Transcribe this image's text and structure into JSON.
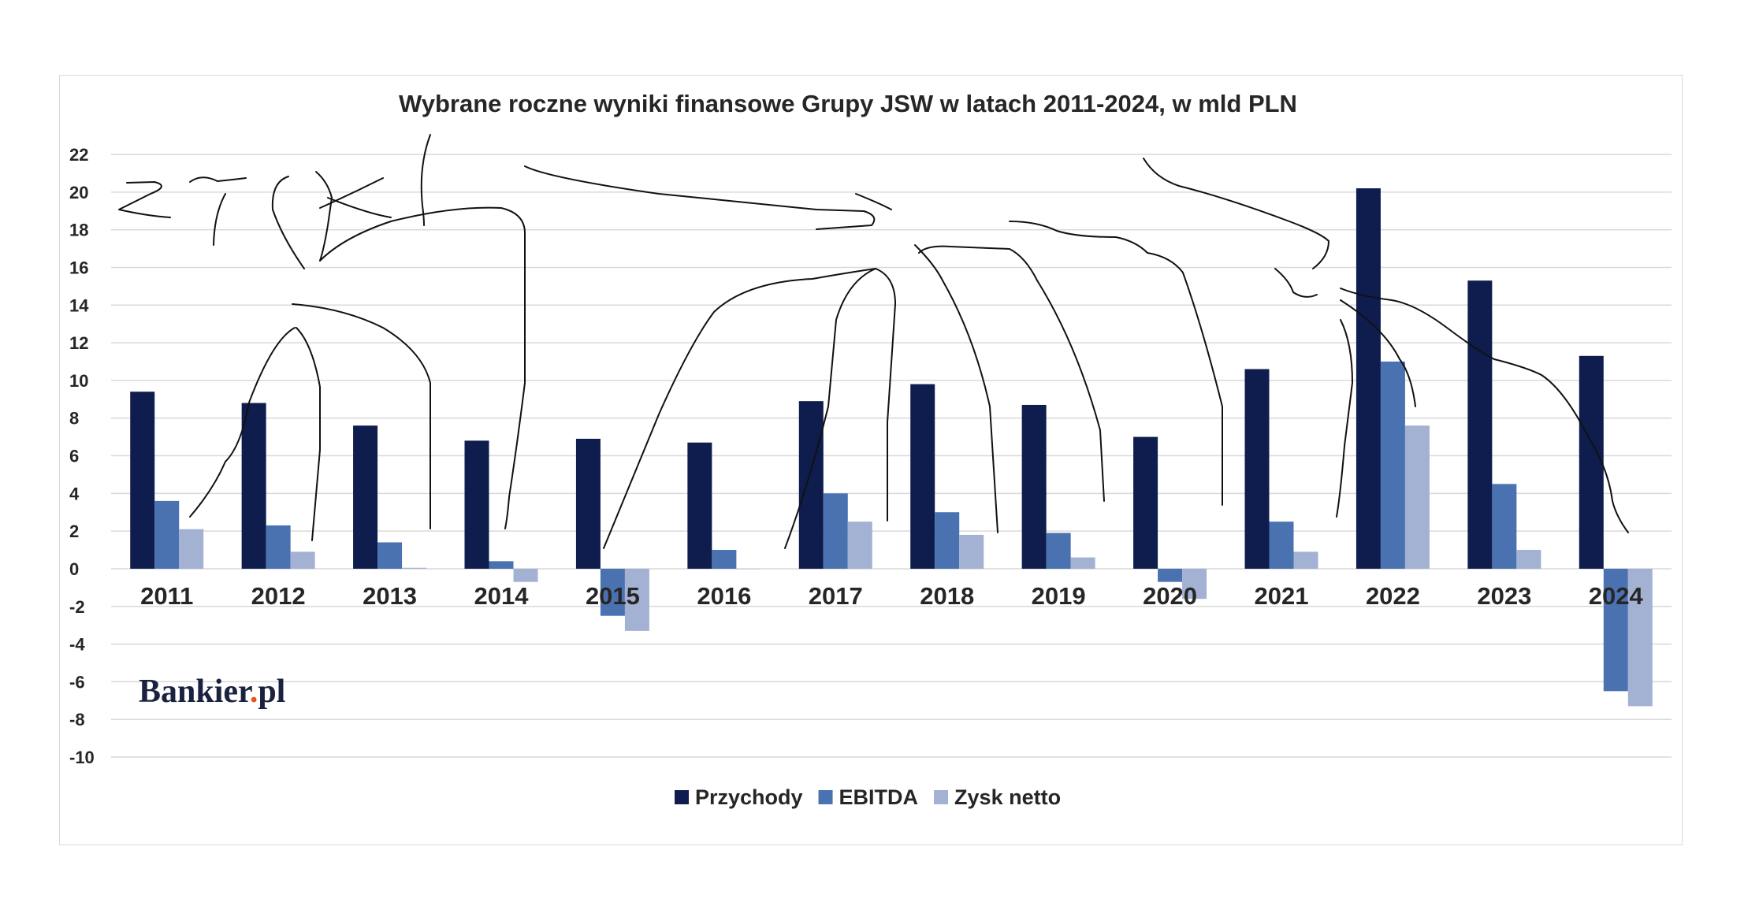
{
  "chart_data": {
    "type": "bar",
    "title": "Wybrane roczne wyniki finansowe Grupy JSW w latach 2011-2024, w mld PLN",
    "categories": [
      "2011",
      "2012",
      "2013",
      "2014",
      "2015",
      "2016",
      "2017",
      "2018",
      "2019",
      "2020",
      "2021",
      "2022",
      "2023",
      "2024"
    ],
    "series": [
      {
        "name": "Przychody",
        "color": "#0e1d4d",
        "values": [
          9.4,
          8.8,
          7.6,
          6.8,
          6.9,
          6.7,
          8.9,
          9.8,
          8.7,
          7.0,
          10.6,
          20.2,
          15.3,
          11.3
        ]
      },
      {
        "name": "EBITDA",
        "color": "#4a72b0",
        "values": [
          3.6,
          2.3,
          1.4,
          0.4,
          -2.5,
          1.0,
          4.0,
          3.0,
          1.9,
          -0.7,
          2.5,
          11.0,
          4.5,
          -6.5
        ]
      },
      {
        "name": "Zysk netto",
        "color": "#a3b1d3",
        "values": [
          2.1,
          0.9,
          0.05,
          -0.7,
          -3.3,
          0.0,
          2.5,
          1.8,
          0.6,
          -1.6,
          0.9,
          7.6,
          1.0,
          -7.3
        ]
      }
    ],
    "ylim": [
      -10,
      22
    ],
    "yticks": [
      "22",
      "20",
      "18",
      "16",
      "14",
      "12",
      "10",
      "8",
      "6",
      "4",
      "2",
      "0",
      "-2",
      "-4",
      "-6",
      "-8",
      "-10"
    ],
    "grid": true,
    "legend_position": "bottom"
  },
  "watermark": {
    "brand": "Bankier",
    "dot": ".",
    "suffix": "pl",
    "dot_color": "#e8541e"
  }
}
